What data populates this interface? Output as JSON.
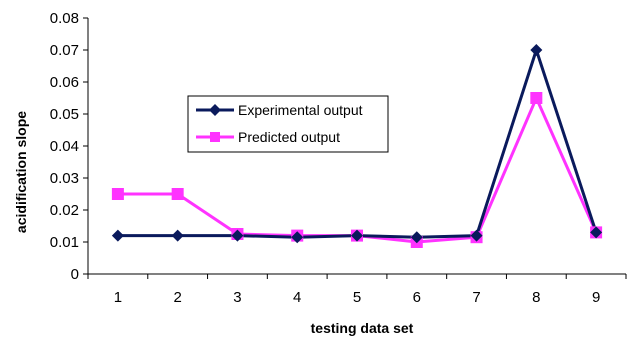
{
  "chart_data": {
    "type": "line",
    "x": [
      1,
      2,
      3,
      4,
      5,
      6,
      7,
      8,
      9
    ],
    "xticks": [
      "1",
      "2",
      "3",
      "4",
      "5",
      "6",
      "7",
      "8",
      "9"
    ],
    "xlabel": "testing data set",
    "ylabel": "acidification slope",
    "ylim": [
      0,
      0.08
    ],
    "yticks": [
      "0",
      "0.01",
      "0.02",
      "0.03",
      "0.04",
      "0.05",
      "0.06",
      "0.07",
      "0.08"
    ],
    "grid": false,
    "legend_position": "upper-center",
    "series": [
      {
        "name": "Experimental output",
        "color": "#0a1a5c",
        "marker": "diamond",
        "values": [
          0.012,
          0.012,
          0.012,
          0.0115,
          0.012,
          0.0115,
          0.012,
          0.07,
          0.013
        ]
      },
      {
        "name": "Predicted output",
        "color": "#ff33ff",
        "marker": "square",
        "values": [
          0.025,
          0.025,
          0.0125,
          0.012,
          0.012,
          0.01,
          0.0115,
          0.055,
          0.013
        ]
      }
    ]
  }
}
